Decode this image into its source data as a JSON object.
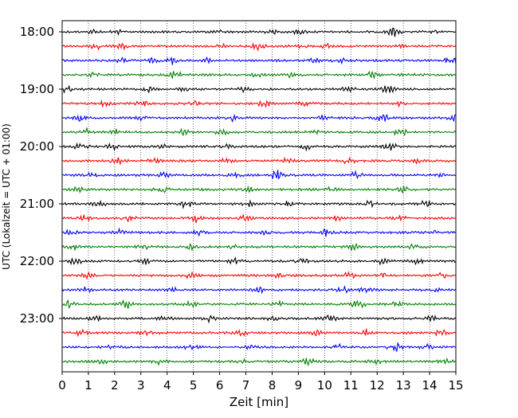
{
  "chart_data": {
    "type": "line",
    "title": "",
    "xlabel": "Zeit  [min]",
    "ylabel": "UTC (Lokalzeit = UTC + 01:00)",
    "xlim": [
      0,
      15
    ],
    "x_ticks": [
      0,
      1,
      2,
      3,
      4,
      5,
      6,
      7,
      8,
      9,
      10,
      11,
      12,
      13,
      14,
      15
    ],
    "x_grid": true,
    "grid_style": "dotted",
    "y_ticks": [
      "18:00",
      "19:00",
      "20:00",
      "21:00",
      "22:00",
      "23:00"
    ],
    "traces_per_hour": 4,
    "trace_minutes": 15,
    "trace_start_times": [
      "18:00",
      "18:15",
      "18:30",
      "18:45",
      "19:00",
      "19:15",
      "19:30",
      "19:45",
      "20:00",
      "20:15",
      "20:30",
      "20:45",
      "21:00",
      "21:15",
      "21:30",
      "21:45",
      "22:00",
      "22:15",
      "22:30",
      "22:45",
      "23:00",
      "23:15",
      "23:30",
      "23:45"
    ],
    "color_cycle": [
      "#000000",
      "#ff0000",
      "#0000ff",
      "#008000"
    ],
    "series": [
      {
        "start": "18:00",
        "color": "#000000",
        "amplitude": 0.1,
        "bursts": [
          [
            1.2,
            0.15
          ],
          [
            2.1,
            0.12
          ],
          [
            5.9,
            0.12
          ],
          [
            8.0,
            0.12
          ],
          [
            9.0,
            0.18
          ],
          [
            12.6,
            0.35
          ],
          [
            14.1,
            0.12
          ]
        ]
      },
      {
        "start": "18:15",
        "color": "#ff0000",
        "amplitude": 0.1,
        "bursts": [
          [
            1.3,
            0.25
          ],
          [
            2.3,
            0.25
          ],
          [
            6.1,
            0.15
          ],
          [
            7.5,
            0.3
          ],
          [
            9.1,
            0.2
          ],
          [
            10.1,
            0.15
          ],
          [
            13.1,
            0.15
          ]
        ]
      },
      {
        "start": "18:30",
        "color": "#0000ff",
        "amplitude": 0.1,
        "bursts": [
          [
            2.2,
            0.2
          ],
          [
            3.4,
            0.15
          ],
          [
            4.2,
            0.3
          ],
          [
            5.5,
            0.15
          ],
          [
            9.6,
            0.15
          ],
          [
            10.6,
            0.2
          ],
          [
            14.8,
            0.45
          ]
        ]
      },
      {
        "start": "18:45",
        "color": "#008000",
        "amplitude": 0.1,
        "bursts": [
          [
            1.2,
            0.15
          ],
          [
            4.3,
            0.3
          ],
          [
            7.4,
            0.15
          ],
          [
            8.7,
            0.2
          ],
          [
            11.8,
            0.25
          ],
          [
            13.2,
            0.15
          ]
        ]
      },
      {
        "start": "19:00",
        "color": "#000000",
        "amplitude": 0.1,
        "bursts": [
          [
            0.1,
            0.3
          ],
          [
            3.3,
            0.2
          ],
          [
            4.7,
            0.15
          ],
          [
            6.9,
            0.15
          ],
          [
            10.9,
            0.2
          ],
          [
            12.4,
            0.3
          ]
        ]
      },
      {
        "start": "19:15",
        "color": "#ff0000",
        "amplitude": 0.1,
        "bursts": [
          [
            1.6,
            0.2
          ],
          [
            3.1,
            0.25
          ],
          [
            5.1,
            0.2
          ],
          [
            7.7,
            0.25
          ],
          [
            9.3,
            0.2
          ],
          [
            12.8,
            0.15
          ]
        ]
      },
      {
        "start": "19:30",
        "color": "#0000ff",
        "amplitude": 0.1,
        "bursts": [
          [
            0.7,
            0.25
          ],
          [
            3.0,
            0.2
          ],
          [
            6.5,
            0.2
          ],
          [
            9.9,
            0.2
          ],
          [
            12.2,
            0.3
          ],
          [
            14.9,
            0.35
          ]
        ]
      },
      {
        "start": "19:45",
        "color": "#008000",
        "amplitude": 0.1,
        "bursts": [
          [
            0.9,
            0.25
          ],
          [
            2.0,
            0.2
          ],
          [
            4.6,
            0.2
          ],
          [
            6.1,
            0.25
          ],
          [
            9.6,
            0.2
          ],
          [
            12.9,
            0.35
          ]
        ]
      },
      {
        "start": "20:00",
        "color": "#000000",
        "amplitude": 0.1,
        "bursts": [
          [
            0.7,
            0.3
          ],
          [
            1.9,
            0.25
          ],
          [
            3.8,
            0.15
          ],
          [
            6.2,
            0.2
          ],
          [
            9.3,
            0.2
          ],
          [
            12.5,
            0.3
          ]
        ]
      },
      {
        "start": "20:15",
        "color": "#ff0000",
        "amplitude": 0.1,
        "bursts": [
          [
            2.1,
            0.3
          ],
          [
            3.5,
            0.2
          ],
          [
            6.3,
            0.25
          ],
          [
            8.6,
            0.2
          ],
          [
            10.9,
            0.2
          ],
          [
            13.5,
            0.2
          ]
        ]
      },
      {
        "start": "20:30",
        "color": "#0000ff",
        "amplitude": 0.1,
        "bursts": [
          [
            1.1,
            0.15
          ],
          [
            3.9,
            0.2
          ],
          [
            6.6,
            0.15
          ],
          [
            8.2,
            0.45
          ],
          [
            11.2,
            0.2
          ],
          [
            14.4,
            0.15
          ]
        ]
      },
      {
        "start": "20:45",
        "color": "#008000",
        "amplitude": 0.1,
        "bursts": [
          [
            0.6,
            0.15
          ],
          [
            3.8,
            0.3
          ],
          [
            5.3,
            0.15
          ],
          [
            7.1,
            0.2
          ],
          [
            10.3,
            0.2
          ],
          [
            13.0,
            0.25
          ]
        ]
      },
      {
        "start": "21:00",
        "color": "#000000",
        "amplitude": 0.1,
        "bursts": [
          [
            1.4,
            0.25
          ],
          [
            4.7,
            0.35
          ],
          [
            7.1,
            0.2
          ],
          [
            8.6,
            0.2
          ],
          [
            11.7,
            0.2
          ],
          [
            13.8,
            0.3
          ]
        ]
      },
      {
        "start": "21:15",
        "color": "#ff0000",
        "amplitude": 0.1,
        "bursts": [
          [
            0.9,
            0.2
          ],
          [
            2.5,
            0.2
          ],
          [
            5.1,
            0.3
          ],
          [
            7.0,
            0.2
          ],
          [
            10.4,
            0.2
          ],
          [
            12.9,
            0.2
          ]
        ]
      },
      {
        "start": "21:30",
        "color": "#0000ff",
        "amplitude": 0.1,
        "bursts": [
          [
            0.3,
            0.35
          ],
          [
            2.2,
            0.2
          ],
          [
            5.2,
            0.15
          ],
          [
            7.8,
            0.2
          ],
          [
            10.0,
            0.3
          ],
          [
            14.3,
            0.2
          ]
        ]
      },
      {
        "start": "21:45",
        "color": "#008000",
        "amplitude": 0.1,
        "bursts": [
          [
            0.5,
            0.2
          ],
          [
            3.1,
            0.25
          ],
          [
            4.9,
            0.2
          ],
          [
            6.5,
            0.15
          ],
          [
            11.1,
            0.25
          ],
          [
            13.4,
            0.2
          ]
        ]
      },
      {
        "start": "22:00",
        "color": "#000000",
        "amplitude": 0.1,
        "bursts": [
          [
            0.5,
            0.3
          ],
          [
            3.2,
            0.2
          ],
          [
            6.6,
            0.25
          ],
          [
            9.1,
            0.3
          ],
          [
            12.2,
            0.2
          ],
          [
            13.5,
            0.25
          ]
        ]
      },
      {
        "start": "22:15",
        "color": "#ff0000",
        "amplitude": 0.1,
        "bursts": [
          [
            1.0,
            0.2
          ],
          [
            4.9,
            0.25
          ],
          [
            8.3,
            0.2
          ],
          [
            10.9,
            0.25
          ],
          [
            12.2,
            0.15
          ],
          [
            14.5,
            0.2
          ]
        ]
      },
      {
        "start": "22:30",
        "color": "#0000ff",
        "amplitude": 0.1,
        "bursts": [
          [
            0.9,
            0.2
          ],
          [
            4.2,
            0.2
          ],
          [
            7.5,
            0.2
          ],
          [
            10.7,
            0.25
          ],
          [
            11.6,
            0.3
          ],
          [
            14.2,
            0.2
          ]
        ]
      },
      {
        "start": "22:45",
        "color": "#008000",
        "amplitude": 0.1,
        "bursts": [
          [
            0.2,
            0.3
          ],
          [
            2.4,
            0.35
          ],
          [
            4.9,
            0.2
          ],
          [
            8.2,
            0.2
          ],
          [
            11.3,
            0.35
          ],
          [
            12.8,
            0.25
          ]
        ]
      },
      {
        "start": "23:00",
        "color": "#000000",
        "amplitude": 0.1,
        "bursts": [
          [
            1.2,
            0.25
          ],
          [
            3.9,
            0.15
          ],
          [
            5.6,
            0.2
          ],
          [
            8.0,
            0.15
          ],
          [
            10.2,
            0.2
          ],
          [
            14.1,
            0.2
          ]
        ]
      },
      {
        "start": "23:15",
        "color": "#ff0000",
        "amplitude": 0.1,
        "bursts": [
          [
            0.7,
            0.2
          ],
          [
            3.2,
            0.2
          ],
          [
            6.8,
            0.2
          ],
          [
            9.7,
            0.2
          ],
          [
            11.6,
            0.25
          ],
          [
            14.4,
            0.25
          ]
        ]
      },
      {
        "start": "23:30",
        "color": "#0000ff",
        "amplitude": 0.1,
        "bursts": [
          [
            2.0,
            0.2
          ],
          [
            4.9,
            0.3
          ],
          [
            7.2,
            0.15
          ],
          [
            10.5,
            0.2
          ],
          [
            12.7,
            0.35
          ],
          [
            13.9,
            0.2
          ]
        ]
      },
      {
        "start": "23:45",
        "color": "#008000",
        "amplitude": 0.1,
        "bursts": [
          [
            1.5,
            0.2
          ],
          [
            3.7,
            0.2
          ],
          [
            6.8,
            0.2
          ],
          [
            9.4,
            0.25
          ],
          [
            11.9,
            0.2
          ],
          [
            14.6,
            0.2
          ]
        ]
      }
    ]
  }
}
